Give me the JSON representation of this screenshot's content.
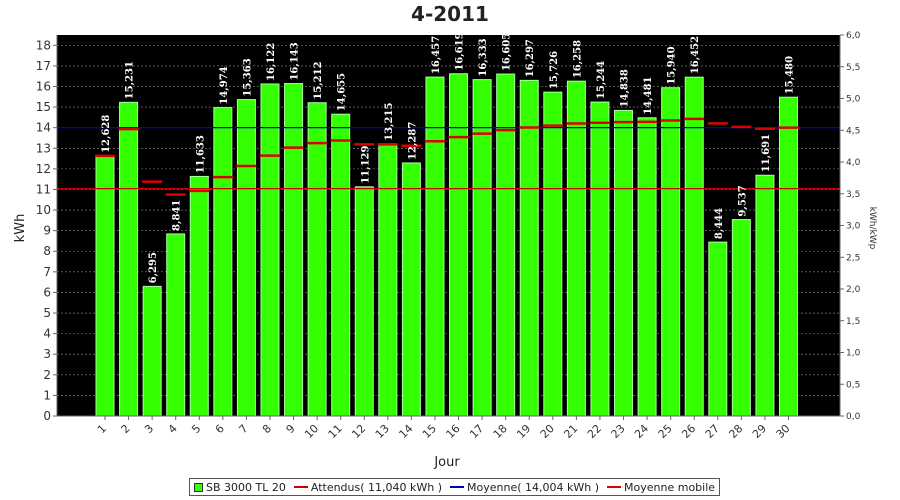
{
  "chart_data": {
    "type": "bar",
    "title": "4-2011",
    "xlabel": "Jour",
    "ylabel": "kWh",
    "y2label": "kWh/kWp",
    "ylim": [
      0,
      18.5
    ],
    "y2lim": [
      0,
      6.0
    ],
    "yticks": [
      "0",
      "1",
      "2",
      "3",
      "4",
      "5",
      "6",
      "7",
      "8",
      "9",
      "10",
      "11",
      "12",
      "13",
      "14",
      "15",
      "16",
      "17",
      "18"
    ],
    "y2ticks": [
      "0,0",
      "0,5",
      "1,0",
      "1,5",
      "2,0",
      "2,5",
      "3,0",
      "3,5",
      "4,0",
      "4,5",
      "5,0",
      "5,5",
      "6,0"
    ],
    "categories": [
      "1",
      "2",
      "3",
      "4",
      "5",
      "6",
      "7",
      "8",
      "9",
      "10",
      "11",
      "12",
      "13",
      "14",
      "15",
      "16",
      "17",
      "18",
      "19",
      "20",
      "21",
      "22",
      "23",
      "24",
      "25",
      "26",
      "27",
      "28",
      "29",
      "30"
    ],
    "series": [
      {
        "name": "SB 3000 TL 20",
        "color": "#33ff00",
        "values": [
          12.628,
          15.231,
          6.295,
          8.841,
          11.633,
          14.974,
          15.363,
          16.122,
          16.143,
          15.212,
          14.655,
          11.129,
          13.215,
          12.287,
          16.457,
          16.619,
          16.333,
          16.605,
          16.297,
          15.726,
          16.258,
          15.244,
          14.838,
          14.481,
          15.94,
          16.452,
          8.444,
          9.537,
          11.691,
          15.48
        ],
        "labels": [
          "12,628",
          "15,231",
          "6,295",
          "8,841",
          "11,633",
          "14,974",
          "15,363",
          "16,122",
          "16,143",
          "15,212",
          "14,655",
          "11,129",
          "13,215",
          "12,287",
          "16,457",
          "16,619",
          "16,333",
          "16,605",
          "16,297",
          "15,726",
          "16,258",
          "15,244",
          "14,838",
          "14,481",
          "15,940",
          "16,452",
          "8,444",
          "9,537",
          "11,691",
          "15,480"
        ]
      },
      {
        "name": "Moyenne mobile",
        "color": "#dd0000",
        "values": [
          12.63,
          13.93,
          11.38,
          10.75,
          10.93,
          11.6,
          12.14,
          12.64,
          13.03,
          13.25,
          13.38,
          13.19,
          13.19,
          13.12,
          13.34,
          13.54,
          13.71,
          13.88,
          14.01,
          14.1,
          14.2,
          14.24,
          14.27,
          14.28,
          14.35,
          14.43,
          14.21,
          14.04,
          13.95,
          14.0
        ]
      }
    ],
    "reference_lines": [
      {
        "name": "Attendus( 11,040 kWh )",
        "value": 11.04,
        "color": "#cc0000"
      },
      {
        "name": "Moyenne( 14,004 kWh )",
        "value": 14.004,
        "color": "#0000cc"
      }
    ],
    "legend_position": "bottom",
    "grid": true
  }
}
